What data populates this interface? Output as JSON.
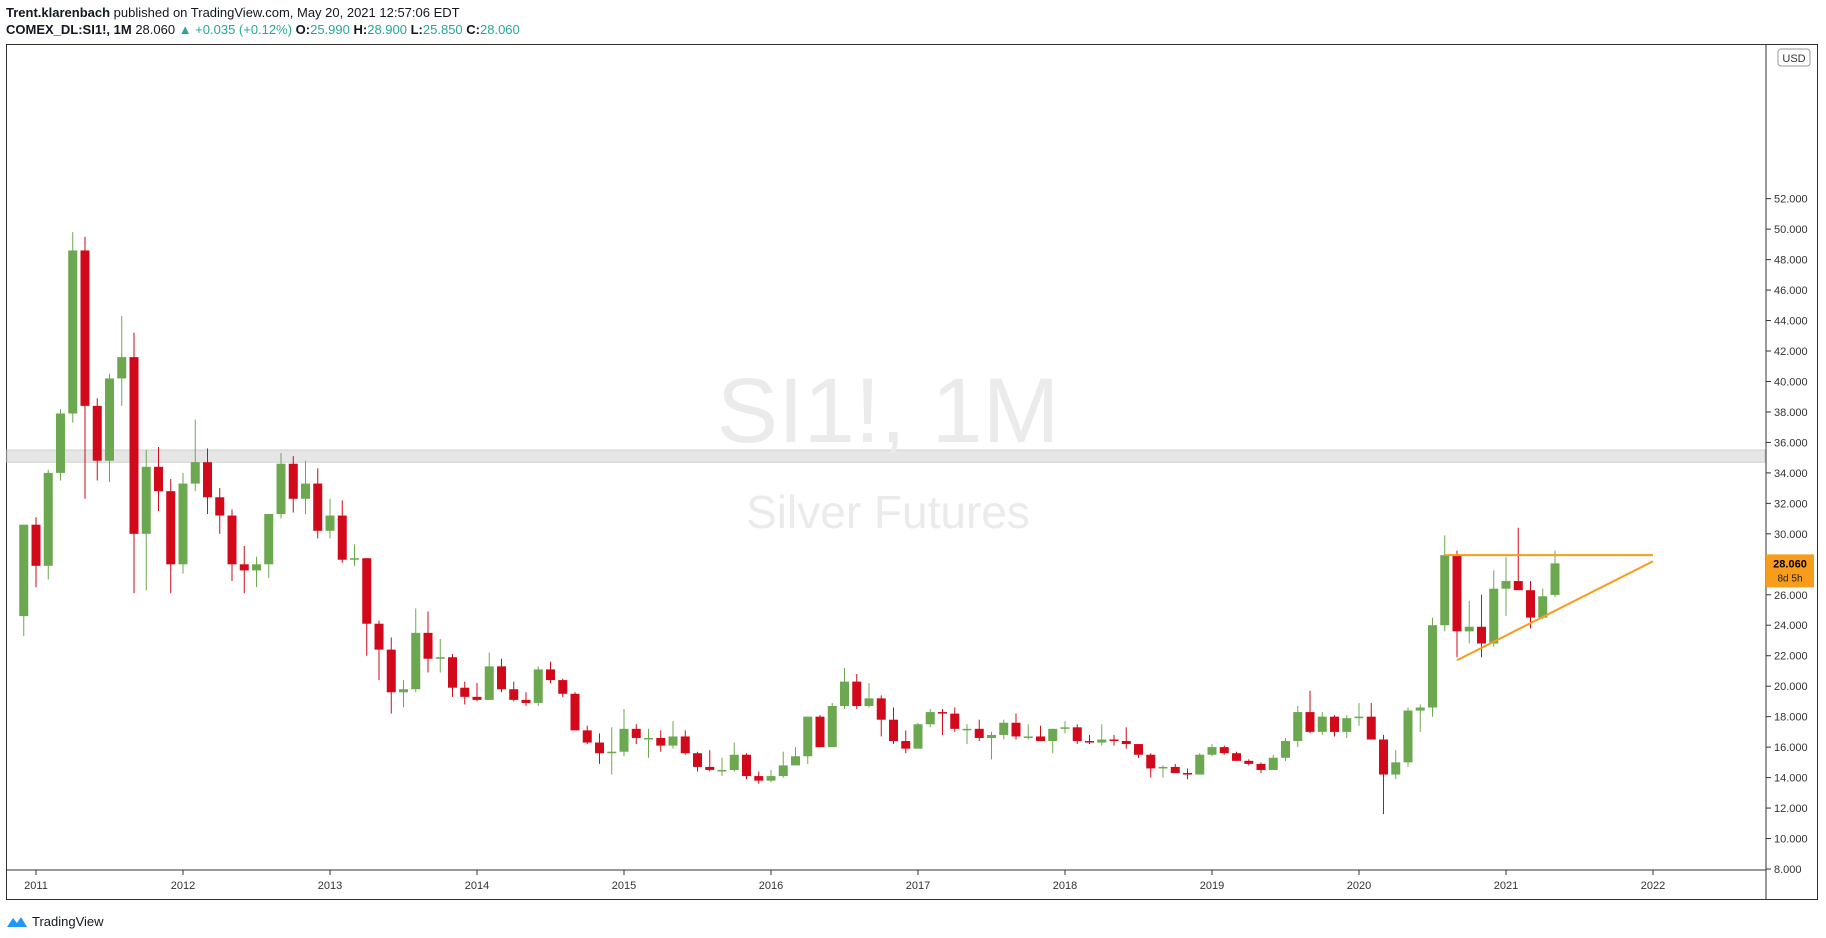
{
  "header": {
    "author": "Trent.klarenbach",
    "published": "published on TradingView.com, May 20, 2021 12:57:06 EDT",
    "symbol": "COMEX_DL:SI1!, 1M",
    "last": "28.060",
    "change": "▲ +0.035 (+0.12%)",
    "o_label": "O:",
    "o_value": "25.990",
    "h_label": "H:",
    "h_value": "28.900",
    "l_label": "L:",
    "l_value": "25.850",
    "c_label": "C:",
    "c_value": "28.060"
  },
  "footer": {
    "brand": "TradingView",
    "icon": "tradingview-logo-icon"
  },
  "chart_data": {
    "type": "candlestick",
    "watermark_symbol": "SI1!, 1M",
    "watermark_name": "Silver Futures",
    "currency": "USD",
    "y_ticks": [
      "8.000",
      "10.000",
      "12.000",
      "14.000",
      "16.000",
      "18.000",
      "20.000",
      "22.000",
      "24.000",
      "26.000",
      "28.000",
      "30.000",
      "32.000",
      "34.000",
      "36.000",
      "38.000",
      "40.000",
      "42.000",
      "44.000",
      "46.000",
      "48.000",
      "50.000",
      "52.000"
    ],
    "x_ticks": [
      "2011",
      "2012",
      "2013",
      "2014",
      "2015",
      "2016",
      "2017",
      "2018",
      "2019",
      "2020",
      "2021",
      "2022"
    ],
    "last_price_label": "28.060",
    "countdown_label": "8d 5h",
    "colors": {
      "up": "#6ba84f",
      "down": "#d1091a",
      "accent": "#f89c1c",
      "zone": "#e6e6e6"
    },
    "zone": [
      34.7,
      35.5
    ],
    "annotations": {
      "resistance": {
        "from": "2020-08",
        "to": "2022-01",
        "price": 28.6
      },
      "support": {
        "from": "2020-09",
        "to": "2022-01",
        "price_from": 21.7,
        "price_to": 28.2
      }
    },
    "candles": [
      {
        "t": "2010-12",
        "o": 24.6,
        "h": 30.6,
        "l": 23.3,
        "c": 30.6
      },
      {
        "t": "2011-01",
        "o": 30.6,
        "h": 31.1,
        "l": 26.5,
        "c": 27.9
      },
      {
        "t": "2011-02",
        "o": 27.9,
        "h": 34.2,
        "l": 27.0,
        "c": 34.0
      },
      {
        "t": "2011-03",
        "o": 34.0,
        "h": 38.2,
        "l": 33.5,
        "c": 37.9
      },
      {
        "t": "2011-04",
        "o": 37.9,
        "h": 49.8,
        "l": 37.3,
        "c": 48.6
      },
      {
        "t": "2011-05",
        "o": 48.6,
        "h": 49.5,
        "l": 32.3,
        "c": 38.4
      },
      {
        "t": "2011-06",
        "o": 38.4,
        "h": 38.9,
        "l": 33.5,
        "c": 34.8
      },
      {
        "t": "2011-07",
        "o": 34.8,
        "h": 40.5,
        "l": 33.4,
        "c": 40.2
      },
      {
        "t": "2011-08",
        "o": 40.2,
        "h": 44.3,
        "l": 38.4,
        "c": 41.6
      },
      {
        "t": "2011-09",
        "o": 41.6,
        "h": 43.2,
        "l": 26.1,
        "c": 30.0
      },
      {
        "t": "2011-10",
        "o": 30.0,
        "h": 35.5,
        "l": 26.3,
        "c": 34.4
      },
      {
        "t": "2011-11",
        "o": 34.4,
        "h": 35.7,
        "l": 31.5,
        "c": 32.8
      },
      {
        "t": "2011-12",
        "o": 32.8,
        "h": 33.6,
        "l": 26.1,
        "c": 28.0
      },
      {
        "t": "2012-01",
        "o": 28.0,
        "h": 34.0,
        "l": 27.4,
        "c": 33.3
      },
      {
        "t": "2012-02",
        "o": 33.3,
        "h": 37.5,
        "l": 32.8,
        "c": 34.7
      },
      {
        "t": "2012-03",
        "o": 34.7,
        "h": 35.6,
        "l": 31.3,
        "c": 32.4
      },
      {
        "t": "2012-04",
        "o": 32.4,
        "h": 33.0,
        "l": 30.0,
        "c": 31.2
      },
      {
        "t": "2012-05",
        "o": 31.2,
        "h": 31.6,
        "l": 26.9,
        "c": 28.0
      },
      {
        "t": "2012-06",
        "o": 28.0,
        "h": 29.2,
        "l": 26.1,
        "c": 27.6
      },
      {
        "t": "2012-07",
        "o": 27.6,
        "h": 28.5,
        "l": 26.5,
        "c": 28.0
      },
      {
        "t": "2012-08",
        "o": 28.0,
        "h": 31.3,
        "l": 27.1,
        "c": 31.3
      },
      {
        "t": "2012-09",
        "o": 31.3,
        "h": 35.3,
        "l": 31.0,
        "c": 34.6
      },
      {
        "t": "2012-10",
        "o": 34.6,
        "h": 35.1,
        "l": 31.4,
        "c": 32.3
      },
      {
        "t": "2012-11",
        "o": 32.3,
        "h": 34.8,
        "l": 31.3,
        "c": 33.3
      },
      {
        "t": "2012-12",
        "o": 33.3,
        "h": 34.3,
        "l": 29.7,
        "c": 30.2
      },
      {
        "t": "2013-01",
        "o": 30.2,
        "h": 32.3,
        "l": 29.7,
        "c": 31.2
      },
      {
        "t": "2013-02",
        "o": 31.2,
        "h": 32.2,
        "l": 28.1,
        "c": 28.3
      },
      {
        "t": "2013-03",
        "o": 28.3,
        "h": 29.3,
        "l": 27.9,
        "c": 28.4
      },
      {
        "t": "2013-04",
        "o": 28.4,
        "h": 28.4,
        "l": 22.0,
        "c": 24.1
      },
      {
        "t": "2013-05",
        "o": 24.1,
        "h": 24.3,
        "l": 20.4,
        "c": 22.4
      },
      {
        "t": "2013-06",
        "o": 22.4,
        "h": 23.2,
        "l": 18.2,
        "c": 19.6
      },
      {
        "t": "2013-07",
        "o": 19.6,
        "h": 20.4,
        "l": 18.6,
        "c": 19.8
      },
      {
        "t": "2013-08",
        "o": 19.8,
        "h": 25.1,
        "l": 19.6,
        "c": 23.5
      },
      {
        "t": "2013-09",
        "o": 23.5,
        "h": 24.9,
        "l": 20.9,
        "c": 21.8
      },
      {
        "t": "2013-10",
        "o": 21.8,
        "h": 23.1,
        "l": 20.9,
        "c": 21.9
      },
      {
        "t": "2013-11",
        "o": 21.9,
        "h": 22.1,
        "l": 19.3,
        "c": 19.9
      },
      {
        "t": "2013-12",
        "o": 19.9,
        "h": 20.3,
        "l": 18.8,
        "c": 19.3
      },
      {
        "t": "2014-01",
        "o": 19.3,
        "h": 20.2,
        "l": 19.0,
        "c": 19.1
      },
      {
        "t": "2014-02",
        "o": 19.1,
        "h": 22.2,
        "l": 19.1,
        "c": 21.3
      },
      {
        "t": "2014-03",
        "o": 21.3,
        "h": 21.8,
        "l": 19.6,
        "c": 19.8
      },
      {
        "t": "2014-04",
        "o": 19.8,
        "h": 20.3,
        "l": 19.0,
        "c": 19.1
      },
      {
        "t": "2014-05",
        "o": 19.1,
        "h": 19.6,
        "l": 18.7,
        "c": 18.9
      },
      {
        "t": "2014-06",
        "o": 18.9,
        "h": 21.3,
        "l": 18.7,
        "c": 21.1
      },
      {
        "t": "2014-07",
        "o": 21.1,
        "h": 21.6,
        "l": 20.2,
        "c": 20.4
      },
      {
        "t": "2014-08",
        "o": 20.4,
        "h": 20.5,
        "l": 19.3,
        "c": 19.5
      },
      {
        "t": "2014-09",
        "o": 19.5,
        "h": 19.6,
        "l": 17.1,
        "c": 17.1
      },
      {
        "t": "2014-10",
        "o": 17.1,
        "h": 17.4,
        "l": 16.2,
        "c": 16.3
      },
      {
        "t": "2014-11",
        "o": 16.3,
        "h": 16.9,
        "l": 14.9,
        "c": 15.6
      },
      {
        "t": "2014-12",
        "o": 15.6,
        "h": 17.3,
        "l": 14.2,
        "c": 15.7
      },
      {
        "t": "2015-01",
        "o": 15.7,
        "h": 18.5,
        "l": 15.4,
        "c": 17.2
      },
      {
        "t": "2015-02",
        "o": 17.2,
        "h": 17.5,
        "l": 16.2,
        "c": 16.6
      },
      {
        "t": "2015-03",
        "o": 16.6,
        "h": 17.2,
        "l": 15.3,
        "c": 16.6
      },
      {
        "t": "2015-04",
        "o": 16.6,
        "h": 17.1,
        "l": 15.7,
        "c": 16.1
      },
      {
        "t": "2015-05",
        "o": 16.1,
        "h": 17.7,
        "l": 15.9,
        "c": 16.7
      },
      {
        "t": "2015-06",
        "o": 16.7,
        "h": 17.1,
        "l": 15.5,
        "c": 15.6
      },
      {
        "t": "2015-07",
        "o": 15.6,
        "h": 15.7,
        "l": 14.4,
        "c": 14.7
      },
      {
        "t": "2015-08",
        "o": 14.7,
        "h": 15.8,
        "l": 14.4,
        "c": 14.5
      },
      {
        "t": "2015-09",
        "o": 14.5,
        "h": 15.3,
        "l": 14.1,
        "c": 14.5
      },
      {
        "t": "2015-10",
        "o": 14.5,
        "h": 16.3,
        "l": 14.4,
        "c": 15.5
      },
      {
        "t": "2015-11",
        "o": 15.5,
        "h": 15.6,
        "l": 13.9,
        "c": 14.1
      },
      {
        "t": "2015-12",
        "o": 14.1,
        "h": 14.4,
        "l": 13.6,
        "c": 13.8
      },
      {
        "t": "2016-01",
        "o": 13.8,
        "h": 14.5,
        "l": 13.7,
        "c": 14.1
      },
      {
        "t": "2016-02",
        "o": 14.1,
        "h": 15.7,
        "l": 14.0,
        "c": 14.8
      },
      {
        "t": "2016-03",
        "o": 14.8,
        "h": 16.0,
        "l": 14.8,
        "c": 15.4
      },
      {
        "t": "2016-04",
        "o": 15.4,
        "h": 18.0,
        "l": 14.9,
        "c": 18.0
      },
      {
        "t": "2016-05",
        "o": 18.0,
        "h": 18.1,
        "l": 16.0,
        "c": 16.0
      },
      {
        "t": "2016-06",
        "o": 16.0,
        "h": 18.9,
        "l": 16.0,
        "c": 18.7
      },
      {
        "t": "2016-07",
        "o": 18.7,
        "h": 21.2,
        "l": 18.5,
        "c": 20.3
      },
      {
        "t": "2016-08",
        "o": 20.3,
        "h": 20.8,
        "l": 18.5,
        "c": 18.7
      },
      {
        "t": "2016-09",
        "o": 18.7,
        "h": 20.2,
        "l": 18.6,
        "c": 19.2
      },
      {
        "t": "2016-10",
        "o": 19.2,
        "h": 19.4,
        "l": 16.7,
        "c": 17.8
      },
      {
        "t": "2016-11",
        "o": 17.8,
        "h": 18.6,
        "l": 16.2,
        "c": 16.4
      },
      {
        "t": "2016-12",
        "o": 16.4,
        "h": 17.1,
        "l": 15.6,
        "c": 15.9
      },
      {
        "t": "2017-01",
        "o": 15.9,
        "h": 17.6,
        "l": 15.9,
        "c": 17.5
      },
      {
        "t": "2017-02",
        "o": 17.5,
        "h": 18.5,
        "l": 17.3,
        "c": 18.3
      },
      {
        "t": "2017-03",
        "o": 18.3,
        "h": 18.5,
        "l": 16.8,
        "c": 18.2
      },
      {
        "t": "2017-04",
        "o": 18.2,
        "h": 18.6,
        "l": 17.0,
        "c": 17.2
      },
      {
        "t": "2017-05",
        "o": 17.2,
        "h": 17.5,
        "l": 16.2,
        "c": 17.2
      },
      {
        "t": "2017-06",
        "o": 17.2,
        "h": 17.8,
        "l": 16.4,
        "c": 16.6
      },
      {
        "t": "2017-07",
        "o": 16.6,
        "h": 17.0,
        "l": 15.2,
        "c": 16.8
      },
      {
        "t": "2017-08",
        "o": 16.8,
        "h": 17.8,
        "l": 16.5,
        "c": 17.6
      },
      {
        "t": "2017-09",
        "o": 17.6,
        "h": 18.2,
        "l": 16.5,
        "c": 16.7
      },
      {
        "t": "2017-10",
        "o": 16.7,
        "h": 17.5,
        "l": 16.5,
        "c": 16.7
      },
      {
        "t": "2017-11",
        "o": 16.7,
        "h": 17.4,
        "l": 16.5,
        "c": 16.4
      },
      {
        "t": "2017-12",
        "o": 16.4,
        "h": 17.2,
        "l": 15.6,
        "c": 17.2
      },
      {
        "t": "2018-01",
        "o": 17.2,
        "h": 17.7,
        "l": 16.9,
        "c": 17.3
      },
      {
        "t": "2018-02",
        "o": 17.3,
        "h": 17.5,
        "l": 16.2,
        "c": 16.4
      },
      {
        "t": "2018-03",
        "o": 16.4,
        "h": 16.8,
        "l": 16.2,
        "c": 16.3
      },
      {
        "t": "2018-04",
        "o": 16.3,
        "h": 17.5,
        "l": 16.1,
        "c": 16.5
      },
      {
        "t": "2018-05",
        "o": 16.5,
        "h": 16.8,
        "l": 16.1,
        "c": 16.4
      },
      {
        "t": "2018-06",
        "o": 16.4,
        "h": 17.3,
        "l": 15.9,
        "c": 16.2
      },
      {
        "t": "2018-07",
        "o": 16.2,
        "h": 16.2,
        "l": 15.3,
        "c": 15.5
      },
      {
        "t": "2018-08",
        "o": 15.5,
        "h": 15.6,
        "l": 14.0,
        "c": 14.6
      },
      {
        "t": "2018-09",
        "o": 14.6,
        "h": 14.8,
        "l": 14.0,
        "c": 14.7
      },
      {
        "t": "2018-10",
        "o": 14.7,
        "h": 14.9,
        "l": 14.3,
        "c": 14.3
      },
      {
        "t": "2018-11",
        "o": 14.3,
        "h": 14.6,
        "l": 13.9,
        "c": 14.2
      },
      {
        "t": "2018-12",
        "o": 14.2,
        "h": 15.6,
        "l": 14.2,
        "c": 15.5
      },
      {
        "t": "2019-01",
        "o": 15.5,
        "h": 16.2,
        "l": 15.4,
        "c": 16.0
      },
      {
        "t": "2019-02",
        "o": 16.0,
        "h": 16.1,
        "l": 15.5,
        "c": 15.6
      },
      {
        "t": "2019-03",
        "o": 15.6,
        "h": 15.7,
        "l": 15.1,
        "c": 15.1
      },
      {
        "t": "2019-04",
        "o": 15.1,
        "h": 15.2,
        "l": 14.8,
        "c": 14.9
      },
      {
        "t": "2019-05",
        "o": 14.9,
        "h": 15.0,
        "l": 14.3,
        "c": 14.5
      },
      {
        "t": "2019-06",
        "o": 14.5,
        "h": 15.5,
        "l": 14.5,
        "c": 15.3
      },
      {
        "t": "2019-07",
        "o": 15.3,
        "h": 16.6,
        "l": 15.1,
        "c": 16.4
      },
      {
        "t": "2019-08",
        "o": 16.4,
        "h": 18.7,
        "l": 16.0,
        "c": 18.3
      },
      {
        "t": "2019-09",
        "o": 18.3,
        "h": 19.7,
        "l": 16.9,
        "c": 17.0
      },
      {
        "t": "2019-10",
        "o": 17.0,
        "h": 18.3,
        "l": 16.8,
        "c": 18.0
      },
      {
        "t": "2019-11",
        "o": 18.0,
        "h": 18.1,
        "l": 16.7,
        "c": 17.0
      },
      {
        "t": "2019-12",
        "o": 17.0,
        "h": 18.1,
        "l": 16.6,
        "c": 17.9
      },
      {
        "t": "2020-01",
        "o": 17.9,
        "h": 18.9,
        "l": 17.4,
        "c": 18.0
      },
      {
        "t": "2020-02",
        "o": 18.0,
        "h": 18.9,
        "l": 16.5,
        "c": 16.5
      },
      {
        "t": "2020-03",
        "o": 16.5,
        "h": 16.8,
        "l": 11.6,
        "c": 14.2
      },
      {
        "t": "2020-04",
        "o": 14.2,
        "h": 15.8,
        "l": 13.9,
        "c": 15.0
      },
      {
        "t": "2020-05",
        "o": 15.0,
        "h": 18.6,
        "l": 14.7,
        "c": 18.4
      },
      {
        "t": "2020-06",
        "o": 18.4,
        "h": 18.8,
        "l": 17.0,
        "c": 18.6
      },
      {
        "t": "2020-07",
        "o": 18.6,
        "h": 24.5,
        "l": 18.0,
        "c": 24.0
      },
      {
        "t": "2020-08",
        "o": 24.0,
        "h": 29.9,
        "l": 23.6,
        "c": 28.6
      },
      {
        "t": "2020-09",
        "o": 28.6,
        "h": 28.9,
        "l": 21.9,
        "c": 23.6
      },
      {
        "t": "2020-10",
        "o": 23.6,
        "h": 25.6,
        "l": 22.8,
        "c": 23.9
      },
      {
        "t": "2020-11",
        "o": 23.9,
        "h": 26.0,
        "l": 21.9,
        "c": 22.8
      },
      {
        "t": "2020-12",
        "o": 22.8,
        "h": 27.6,
        "l": 22.6,
        "c": 26.4
      },
      {
        "t": "2021-01",
        "o": 26.4,
        "h": 28.5,
        "l": 24.6,
        "c": 26.9
      },
      {
        "t": "2021-02",
        "o": 26.9,
        "h": 30.4,
        "l": 26.5,
        "c": 26.3
      },
      {
        "t": "2021-03",
        "o": 26.3,
        "h": 26.9,
        "l": 23.8,
        "c": 24.5
      },
      {
        "t": "2021-04",
        "o": 24.5,
        "h": 26.4,
        "l": 24.4,
        "c": 25.9
      },
      {
        "t": "2021-05",
        "o": 25.99,
        "h": 28.9,
        "l": 25.85,
        "c": 28.06
      }
    ]
  }
}
